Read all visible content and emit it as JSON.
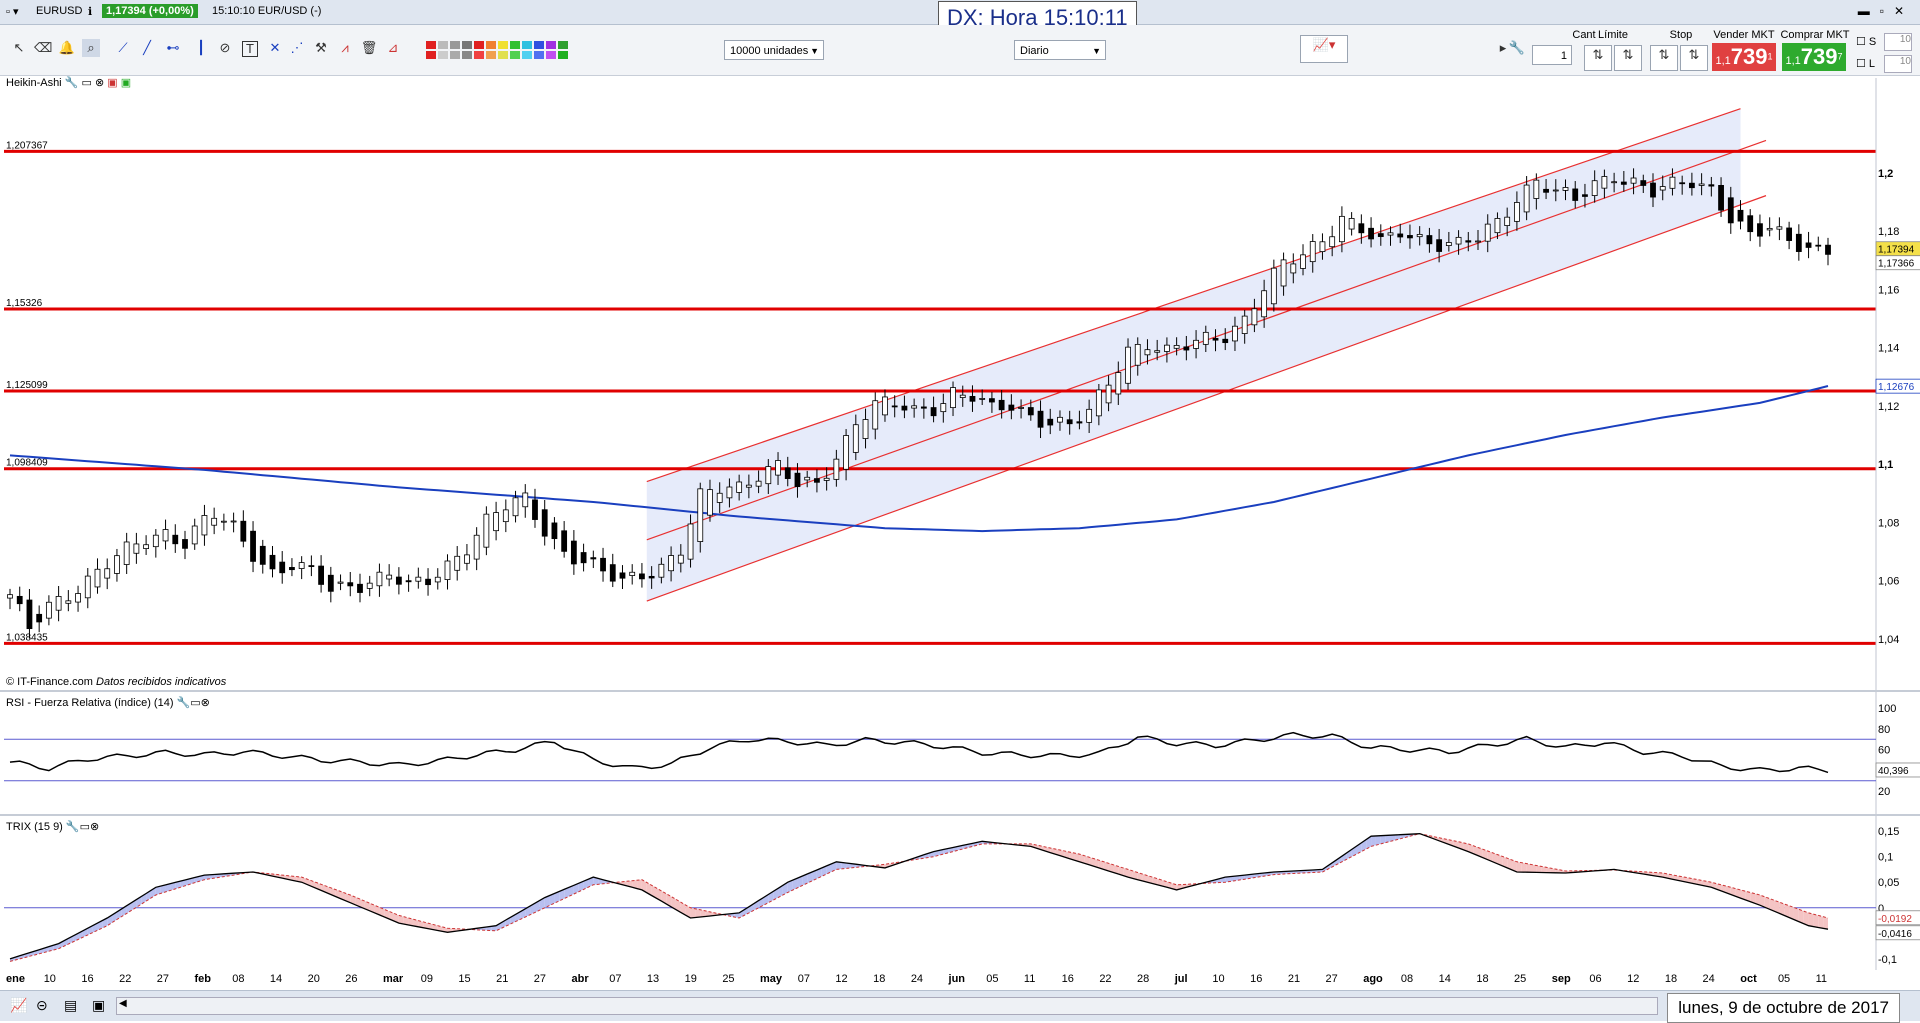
{
  "window": {
    "symbol": "EURUSD",
    "price_badge": "1,17394 (+0,00%)",
    "status_text": "15:10:10 EUR/USD (-)",
    "clock": "DX: Hora 15:10:11"
  },
  "toolbar": {
    "units_dropdown": "10000 unidades",
    "period_dropdown": "Diario",
    "cant_label": "Cant",
    "cant_value": "1",
    "limite_label": "Límite",
    "stop_label": "Stop",
    "sell_label": "Vender MKT",
    "sell_prefix": "1,1",
    "sell_big": "739",
    "sell_sup": "1",
    "buy_label": "Comprar MKT",
    "buy_prefix": "1,1",
    "buy_big": "739",
    "buy_sup": "7",
    "s_label": "S",
    "l_label": "L",
    "s_value": "10",
    "l_value": "10"
  },
  "panels": {
    "main_title": "Heikin-Ashi",
    "source_note": "© IT-Finance.com",
    "source_note_italic": "Datos recibidos indicativos",
    "rsi_title": "RSI - Fuerza Relativa (índice) (14)",
    "trix_title": "TRIX (15 9)"
  },
  "colors": {
    "candle_up": "#ffffff",
    "candle_down": "#000000",
    "level_line": "#e00000",
    "channel_line": "#e83030",
    "channel_fill": "#e6ebfa",
    "ma_line": "#1a3fbf",
    "rsi_line": "#000000",
    "trix_line": "#000000",
    "trix_signal": "#cc3333",
    "band_line": "#5a5ad0"
  },
  "chart_data": {
    "type": "candlestick",
    "x_tick_labels": [
      "ene",
      "10",
      "16",
      "22",
      "27",
      "feb",
      "08",
      "14",
      "20",
      "26",
      "mar",
      "09",
      "15",
      "21",
      "27",
      "abr",
      "07",
      "13",
      "19",
      "25",
      "may",
      "07",
      "12",
      "18",
      "24",
      "jun",
      "05",
      "11",
      "16",
      "22",
      "28",
      "jul",
      "10",
      "16",
      "21",
      "27",
      "ago",
      "08",
      "14",
      "18",
      "25",
      "sep",
      "06",
      "12",
      "18",
      "24",
      "oct",
      "05",
      "11"
    ],
    "x_tick_bold": [
      "ene",
      "feb",
      "mar",
      "abr",
      "may",
      "jun",
      "jul",
      "ago",
      "sep",
      "oct"
    ],
    "price_axis": {
      "ylim": [
        1.03,
        1.225
      ],
      "ticks": [
        1.04,
        1.06,
        1.08,
        1.1,
        1.12,
        1.14,
        1.16,
        1.18,
        1.2
      ],
      "tick_labels": [
        "1,04",
        "1,06",
        "1,08",
        "1,1",
        "1,12",
        "1,14",
        "1,16",
        "1,18",
        "1,2"
      ],
      "bold_ticks": [
        "1,1",
        "1,2"
      ]
    },
    "horizontal_levels": [
      {
        "value": 1.207367,
        "label": "1,207367"
      },
      {
        "value": 1.15326,
        "label": "1,15326"
      },
      {
        "value": 1.125099,
        "label": "1,125099"
      },
      {
        "value": 1.098409,
        "label": "1,098409"
      },
      {
        "value": 1.038435,
        "label": "1,038435"
      }
    ],
    "price_flags": [
      {
        "value": 1.17394,
        "label": "1,17394",
        "style": "last"
      },
      {
        "value": 1.17366,
        "label": "1,17366",
        "style": "plain"
      },
      {
        "value": 1.12676,
        "label": "1,12676",
        "style": "ma"
      }
    ],
    "close_path": [
      [
        0,
        1.054
      ],
      [
        2,
        1.043
      ],
      [
        4,
        1.052
      ],
      [
        6,
        1.056
      ],
      [
        8,
        1.06
      ],
      [
        10,
        1.065
      ],
      [
        12,
        1.07
      ],
      [
        14,
        1.075
      ],
      [
        16,
        1.077
      ],
      [
        18,
        1.073
      ],
      [
        20,
        1.08
      ],
      [
        21,
        1.082
      ],
      [
        23,
        1.078
      ],
      [
        25,
        1.07
      ],
      [
        27,
        1.063
      ],
      [
        29,
        1.065
      ],
      [
        31,
        1.062
      ],
      [
        33,
        1.057
      ],
      [
        35,
        1.059
      ],
      [
        37,
        1.06
      ],
      [
        39,
        1.062
      ],
      [
        41,
        1.057
      ],
      [
        43,
        1.06
      ],
      [
        45,
        1.066
      ],
      [
        47,
        1.072
      ],
      [
        49,
        1.08
      ],
      [
        51,
        1.085
      ],
      [
        53,
        1.088
      ],
      [
        55,
        1.078
      ],
      [
        57,
        1.07
      ],
      [
        59,
        1.066
      ],
      [
        61,
        1.062
      ],
      [
        63,
        1.06
      ],
      [
        65,
        1.063
      ],
      [
        67,
        1.065
      ],
      [
        69,
        1.07
      ],
      [
        71,
        1.088
      ],
      [
        73,
        1.092
      ],
      [
        75,
        1.093
      ],
      [
        77,
        1.097
      ],
      [
        79,
        1.099
      ],
      [
        81,
        1.092
      ],
      [
        83,
        1.093
      ],
      [
        85,
        1.103
      ],
      [
        87,
        1.115
      ],
      [
        89,
        1.12
      ],
      [
        91,
        1.12
      ],
      [
        93,
        1.118
      ],
      [
        95,
        1.12
      ],
      [
        97,
        1.125
      ],
      [
        99,
        1.123
      ],
      [
        101,
        1.118
      ],
      [
        103,
        1.12
      ],
      [
        105,
        1.117
      ],
      [
        107,
        1.115
      ],
      [
        109,
        1.113
      ],
      [
        111,
        1.117
      ],
      [
        113,
        1.128
      ],
      [
        115,
        1.14
      ],
      [
        117,
        1.142
      ],
      [
        119,
        1.138
      ],
      [
        121,
        1.14
      ],
      [
        123,
        1.143
      ],
      [
        125,
        1.145
      ],
      [
        127,
        1.15
      ],
      [
        129,
        1.16
      ],
      [
        131,
        1.168
      ],
      [
        133,
        1.172
      ],
      [
        135,
        1.178
      ],
      [
        137,
        1.185
      ],
      [
        139,
        1.18
      ],
      [
        141,
        1.175
      ],
      [
        143,
        1.18
      ],
      [
        145,
        1.178
      ],
      [
        147,
        1.176
      ],
      [
        149,
        1.175
      ],
      [
        151,
        1.177
      ],
      [
        153,
        1.183
      ],
      [
        155,
        1.192
      ],
      [
        157,
        1.198
      ],
      [
        159,
        1.193
      ],
      [
        161,
        1.19
      ],
      [
        163,
        1.196
      ],
      [
        165,
        1.2
      ],
      [
        167,
        1.197
      ],
      [
        169,
        1.193
      ],
      [
        171,
        1.195
      ],
      [
        173,
        1.197
      ],
      [
        175,
        1.195
      ],
      [
        177,
        1.185
      ],
      [
        179,
        1.178
      ],
      [
        181,
        1.18
      ],
      [
        183,
        1.177
      ],
      [
        185,
        1.175
      ],
      [
        187,
        1.174
      ]
    ],
    "ma_path": [
      [
        0,
        1.103
      ],
      [
        20,
        1.098
      ],
      [
        40,
        1.092
      ],
      [
        60,
        1.087
      ],
      [
        75,
        1.082
      ],
      [
        90,
        1.078
      ],
      [
        100,
        1.077
      ],
      [
        110,
        1.078
      ],
      [
        120,
        1.081
      ],
      [
        130,
        1.087
      ],
      [
        140,
        1.095
      ],
      [
        150,
        1.103
      ],
      [
        160,
        1.11
      ],
      [
        170,
        1.116
      ],
      [
        180,
        1.121
      ],
      [
        187,
        1.1268
      ]
    ],
    "channel": {
      "start_index": 65.5,
      "end_index": 178,
      "upper": [
        1.094,
        1.222
      ],
      "middle": [
        1.074,
        1.208
      ],
      "lower": [
        1.053,
        1.189
      ]
    },
    "rsi": {
      "ylim": [
        0,
        100
      ],
      "ticks": [
        20,
        40,
        60,
        80,
        100
      ],
      "tick_labels": [
        "20",
        "40",
        "60",
        "80",
        "100"
      ],
      "bands": [
        30,
        70
      ],
      "last_label": "40,396",
      "path": [
        [
          0,
          48
        ],
        [
          4,
          42
        ],
        [
          8,
          51
        ],
        [
          12,
          54
        ],
        [
          16,
          57
        ],
        [
          20,
          55
        ],
        [
          24,
          58
        ],
        [
          28,
          54
        ],
        [
          32,
          50
        ],
        [
          36,
          48
        ],
        [
          40,
          45
        ],
        [
          44,
          49
        ],
        [
          48,
          55
        ],
        [
          52,
          60
        ],
        [
          56,
          68
        ],
        [
          60,
          50
        ],
        [
          64,
          42
        ],
        [
          68,
          46
        ],
        [
          72,
          62
        ],
        [
          76,
          70
        ],
        [
          80,
          68
        ],
        [
          84,
          64
        ],
        [
          88,
          69
        ],
        [
          92,
          67
        ],
        [
          96,
          63
        ],
        [
          100,
          57
        ],
        [
          104,
          55
        ],
        [
          108,
          54
        ],
        [
          112,
          56
        ],
        [
          116,
          72
        ],
        [
          120,
          66
        ],
        [
          124,
          64
        ],
        [
          128,
          69
        ],
        [
          132,
          74
        ],
        [
          136,
          73
        ],
        [
          140,
          62
        ],
        [
          144,
          60
        ],
        [
          148,
          58
        ],
        [
          152,
          64
        ],
        [
          156,
          70
        ],
        [
          160,
          62
        ],
        [
          164,
          67
        ],
        [
          168,
          58
        ],
        [
          172,
          54
        ],
        [
          176,
          44
        ],
        [
          180,
          40
        ],
        [
          184,
          42
        ],
        [
          187,
          40.4
        ]
      ]
    },
    "trix": {
      "ylim": [
        -0.11,
        0.16
      ],
      "ticks": [
        -0.1,
        -0.05,
        0,
        0.05,
        0.1,
        0.15
      ],
      "tick_labels": [
        "-0,1",
        "-0,05",
        "0",
        "0,05",
        "0,1",
        "0,15"
      ],
      "last_labels": [
        "-0,0192",
        "-0,0416"
      ],
      "line": [
        [
          0,
          -0.1
        ],
        [
          5,
          -0.07
        ],
        [
          10,
          -0.02
        ],
        [
          15,
          0.04
        ],
        [
          20,
          0.064
        ],
        [
          25,
          0.07
        ],
        [
          30,
          0.05
        ],
        [
          35,
          0.01
        ],
        [
          40,
          -0.03
        ],
        [
          45,
          -0.048
        ],
        [
          50,
          -0.035
        ],
        [
          55,
          0.02
        ],
        [
          60,
          0.06
        ],
        [
          65,
          0.035
        ],
        [
          70,
          -0.02
        ],
        [
          75,
          -0.01
        ],
        [
          80,
          0.05
        ],
        [
          85,
          0.09
        ],
        [
          90,
          0.078
        ],
        [
          95,
          0.11
        ],
        [
          100,
          0.13
        ],
        [
          105,
          0.12
        ],
        [
          110,
          0.09
        ],
        [
          115,
          0.06
        ],
        [
          120,
          0.035
        ],
        [
          125,
          0.06
        ],
        [
          130,
          0.07
        ],
        [
          135,
          0.075
        ],
        [
          140,
          0.14
        ],
        [
          145,
          0.145
        ],
        [
          150,
          0.11
        ],
        [
          155,
          0.07
        ],
        [
          160,
          0.068
        ],
        [
          165,
          0.075
        ],
        [
          170,
          0.06
        ],
        [
          175,
          0.04
        ],
        [
          180,
          0.005
        ],
        [
          185,
          -0.035
        ],
        [
          187,
          -0.042
        ]
      ],
      "signal": [
        [
          0,
          -0.105
        ],
        [
          5,
          -0.08
        ],
        [
          10,
          -0.035
        ],
        [
          15,
          0.025
        ],
        [
          20,
          0.055
        ],
        [
          25,
          0.07
        ],
        [
          30,
          0.06
        ],
        [
          35,
          0.025
        ],
        [
          40,
          -0.015
        ],
        [
          45,
          -0.04
        ],
        [
          50,
          -0.045
        ],
        [
          55,
          0.0
        ],
        [
          60,
          0.045
        ],
        [
          65,
          0.055
        ],
        [
          70,
          0.0
        ],
        [
          75,
          -0.02
        ],
        [
          80,
          0.03
        ],
        [
          85,
          0.075
        ],
        [
          90,
          0.085
        ],
        [
          95,
          0.1
        ],
        [
          100,
          0.125
        ],
        [
          105,
          0.125
        ],
        [
          110,
          0.105
        ],
        [
          115,
          0.075
        ],
        [
          120,
          0.045
        ],
        [
          125,
          0.05
        ],
        [
          130,
          0.065
        ],
        [
          135,
          0.07
        ],
        [
          140,
          0.12
        ],
        [
          145,
          0.145
        ],
        [
          150,
          0.125
        ],
        [
          155,
          0.09
        ],
        [
          160,
          0.072
        ],
        [
          165,
          0.074
        ],
        [
          170,
          0.068
        ],
        [
          175,
          0.05
        ],
        [
          180,
          0.025
        ],
        [
          185,
          -0.01
        ],
        [
          187,
          -0.02
        ]
      ]
    },
    "series": [
      {
        "values_note": "candles"
      }
    ]
  },
  "statusbar": {
    "date": "lunes, 9 de octubre de 2017"
  }
}
